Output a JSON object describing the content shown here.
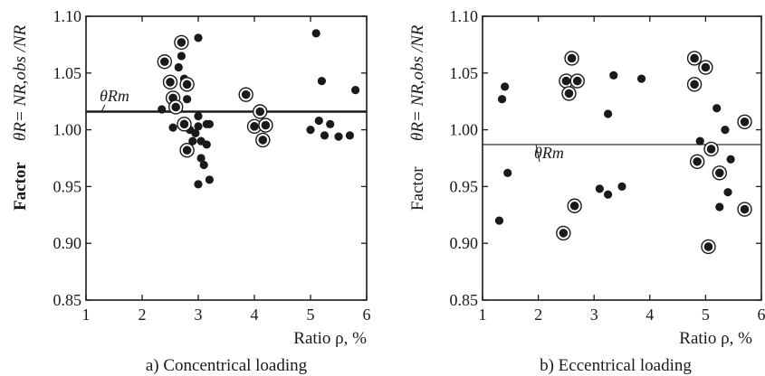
{
  "chart_data": [
    {
      "type": "scatter",
      "panel_label": "a) Concentrical loading",
      "xlabel": "Ratio ρ, %",
      "ylabel_prefix": "Factor",
      "ylabel_formula": "θR= NR,obs /NR",
      "xlim": [
        1,
        6
      ],
      "ylim": [
        0.85,
        1.1
      ],
      "xticks": [
        "1",
        "2",
        "3",
        "4",
        "5",
        "6"
      ],
      "yticks": [
        "0.85",
        "0.90",
        "0.95",
        "1.00",
        "1.05",
        "1.10"
      ],
      "mean_line": {
        "label": "θRm",
        "value": 1.016,
        "style": "thick"
      },
      "series": [
        {
          "marker": "solid",
          "points": [
            [
              2.35,
              1.018
            ],
            [
              2.55,
              1.002
            ],
            [
              2.65,
              1.055
            ],
            [
              2.7,
              1.065
            ],
            [
              2.75,
              1.045
            ],
            [
              2.8,
              1.027
            ],
            [
              2.85,
              1.0
            ],
            [
              2.9,
              0.99
            ],
            [
              2.95,
              0.997
            ],
            [
              3.0,
              1.081
            ],
            [
              3.0,
              1.012
            ],
            [
              3.0,
              1.003
            ],
            [
              3.05,
              0.99
            ],
            [
              3.0,
              0.952
            ],
            [
              3.05,
              0.975
            ],
            [
              3.1,
              0.969
            ],
            [
              3.15,
              1.005
            ],
            [
              3.15,
              0.987
            ],
            [
              3.2,
              0.956
            ],
            [
              3.2,
              1.005
            ],
            [
              5.0,
              1.0
            ],
            [
              5.1,
              1.085
            ],
            [
              5.15,
              1.008
            ],
            [
              5.2,
              1.043
            ],
            [
              5.25,
              0.995
            ],
            [
              5.35,
              1.005
            ],
            [
              5.5,
              0.994
            ],
            [
              5.7,
              0.995
            ],
            [
              5.8,
              1.035
            ]
          ]
        },
        {
          "marker": "ringed",
          "points": [
            [
              2.4,
              1.06
            ],
            [
              2.5,
              1.042
            ],
            [
              2.55,
              1.028
            ],
            [
              2.6,
              1.02
            ],
            [
              2.7,
              1.077
            ],
            [
              2.75,
              1.005
            ],
            [
              2.8,
              1.04
            ],
            [
              2.8,
              0.982
            ],
            [
              3.85,
              1.031
            ],
            [
              4.0,
              1.003
            ],
            [
              4.1,
              1.016
            ],
            [
              4.15,
              0.991
            ],
            [
              4.2,
              1.004
            ]
          ]
        }
      ]
    },
    {
      "type": "scatter",
      "panel_label": "b) Eccentrical loading",
      "xlabel": "Ratio ρ, %",
      "ylabel_prefix": "Factor",
      "ylabel_formula": "θR= NR,obs /NR",
      "xlim": [
        1,
        6
      ],
      "ylim": [
        0.85,
        1.1
      ],
      "xticks": [
        "1",
        "2",
        "3",
        "4",
        "5",
        "6"
      ],
      "yticks": [
        "0.85",
        "0.90",
        "0.95",
        "1.00",
        "1.05",
        "1.10"
      ],
      "mean_line": {
        "label": "θRm",
        "value": 0.987,
        "style": "thin"
      },
      "series": [
        {
          "marker": "solid",
          "points": [
            [
              1.3,
              0.92
            ],
            [
              1.35,
              1.027
            ],
            [
              1.4,
              1.038
            ],
            [
              1.45,
              0.962
            ],
            [
              3.1,
              0.948
            ],
            [
              3.25,
              0.943
            ],
            [
              3.25,
              1.014
            ],
            [
              3.35,
              1.048
            ],
            [
              3.5,
              0.95
            ],
            [
              3.85,
              1.045
            ],
            [
              4.9,
              0.99
            ],
            [
              5.2,
              1.019
            ],
            [
              5.25,
              0.932
            ],
            [
              5.35,
              1.0
            ],
            [
              5.4,
              0.945
            ],
            [
              5.45,
              0.974
            ]
          ]
        },
        {
          "marker": "ringed",
          "points": [
            [
              2.45,
              0.909
            ],
            [
              2.5,
              1.043
            ],
            [
              2.55,
              1.032
            ],
            [
              2.6,
              1.063
            ],
            [
              2.65,
              0.933
            ],
            [
              2.7,
              1.043
            ],
            [
              4.8,
              1.063
            ],
            [
              4.8,
              1.04
            ],
            [
              4.85,
              0.972
            ],
            [
              5.0,
              1.055
            ],
            [
              5.05,
              0.897
            ],
            [
              5.1,
              0.983
            ],
            [
              5.25,
              0.962
            ],
            [
              5.7,
              1.007
            ],
            [
              5.7,
              0.93
            ]
          ]
        }
      ]
    }
  ]
}
